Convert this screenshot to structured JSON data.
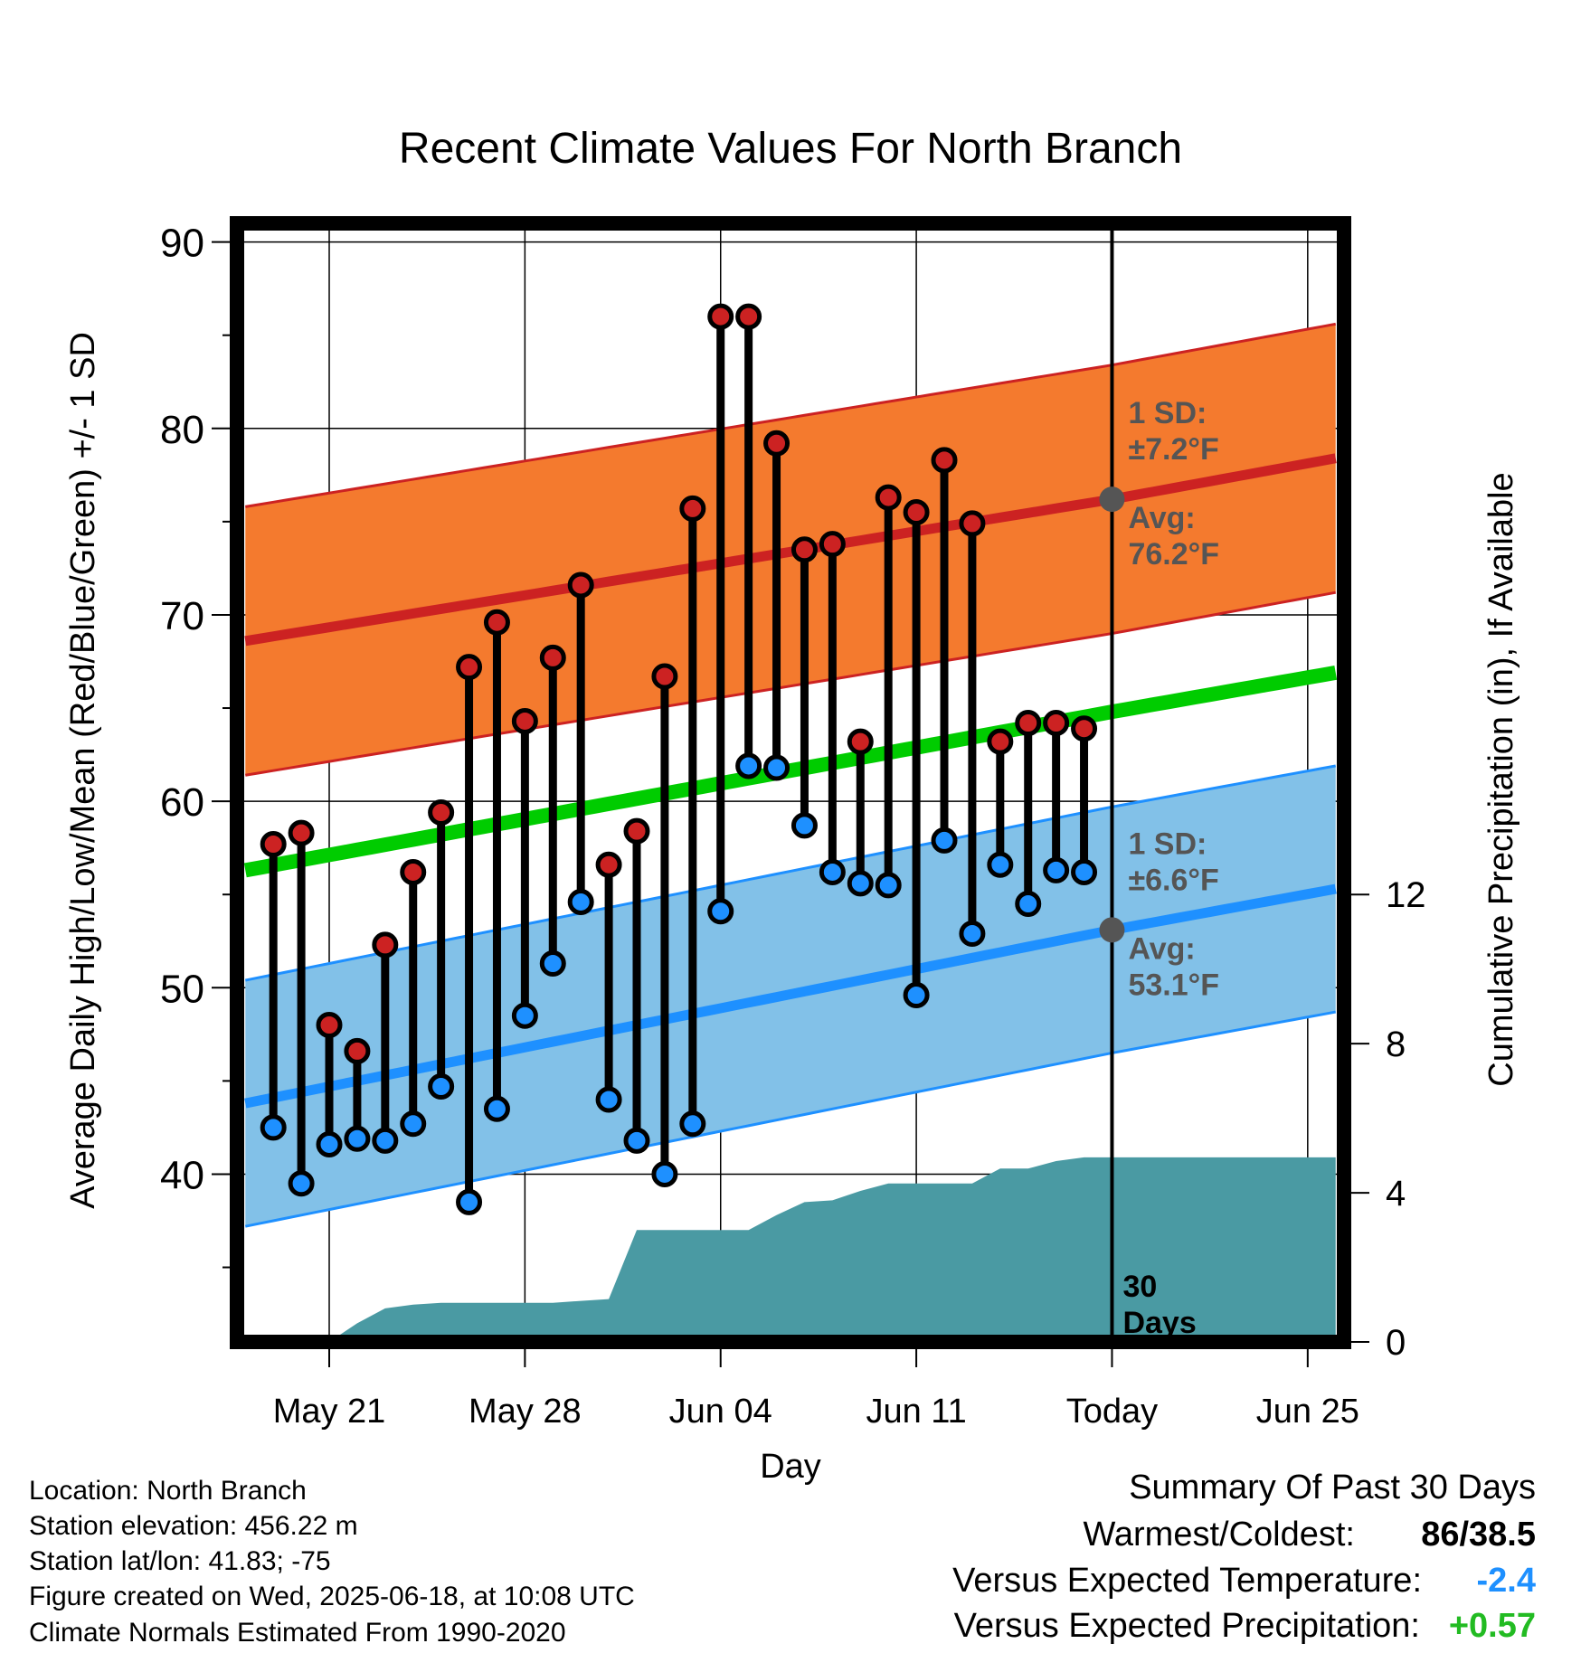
{
  "chart_data": {
    "type": "line",
    "title": "Recent Climate Values For North Branch",
    "xlabel": "Day",
    "ylabel": "Average Daily High/Low/Mean (Red/Blue/Green) +/- 1 SD",
    "y2label": "Cumulative Precipitation (in), If Available",
    "ylim": [
      31,
      91
    ],
    "y2lim": [
      0,
      30
    ],
    "yticks": [
      40,
      50,
      60,
      70,
      80,
      90
    ],
    "y2ticks": [
      0,
      4,
      8,
      12
    ],
    "xticks": [
      {
        "day": 3,
        "label": "May 21"
      },
      {
        "day": 10,
        "label": "May 28"
      },
      {
        "day": 17,
        "label": "Jun 04"
      },
      {
        "day": 24,
        "label": "Jun 11"
      },
      {
        "day": 31,
        "label": "Today"
      },
      {
        "day": 38,
        "label": "Jun 25"
      }
    ],
    "xlim": [
      -0.3,
      39.3
    ],
    "grid": true,
    "colors": {
      "high": "#cc2222",
      "high_band": "#f47a2e",
      "low": "#1e90ff",
      "low_band": "#82c1e8",
      "mean": "#00cc00",
      "precip": "#4a9aa3",
      "dot_high": "#cc2222",
      "dot_low": "#1e90ff"
    },
    "normals": {
      "x": [
        0,
        31,
        39
      ],
      "high_avg": [
        68.6,
        76.2,
        78.4
      ],
      "high_sd": 7.2,
      "low_avg": [
        43.8,
        53.1,
        55.3
      ],
      "low_sd": 6.6,
      "mean_avg": [
        56.3,
        64.8,
        66.9
      ]
    },
    "series": [
      {
        "name": "High",
        "x": [
          1,
          2,
          3,
          4,
          5,
          6,
          7,
          8,
          9,
          10,
          11,
          12,
          13,
          14,
          15,
          16,
          17,
          18,
          19,
          20,
          21,
          22,
          23,
          24,
          25,
          26,
          27,
          28,
          29,
          30
        ],
        "values": [
          57.7,
          58.3,
          48.0,
          46.6,
          52.3,
          56.2,
          59.4,
          67.2,
          69.6,
          64.3,
          67.7,
          71.6,
          56.6,
          58.4,
          66.7,
          75.7,
          86.0,
          86.0,
          79.2,
          73.5,
          73.8,
          63.2,
          76.3,
          75.5,
          78.3,
          74.9,
          63.2,
          64.2,
          64.2,
          63.9
        ]
      },
      {
        "name": "Low",
        "x": [
          1,
          2,
          3,
          4,
          5,
          6,
          7,
          8,
          9,
          10,
          11,
          12,
          13,
          14,
          15,
          16,
          17,
          18,
          19,
          20,
          21,
          22,
          23,
          24,
          25,
          26,
          27,
          28,
          29,
          30
        ],
        "values": [
          42.5,
          39.5,
          41.6,
          41.9,
          41.8,
          42.7,
          44.7,
          38.5,
          43.5,
          48.5,
          51.3,
          54.6,
          44.0,
          41.8,
          40.0,
          42.7,
          54.1,
          61.9,
          61.8,
          58.7,
          56.2,
          55.6,
          55.5,
          49.6,
          57.9,
          52.9,
          56.6,
          54.5,
          56.3,
          56.2
        ]
      },
      {
        "name": "Precip",
        "x": [
          3,
          4,
          5,
          6,
          7,
          8,
          9,
          10,
          11,
          12,
          13,
          14,
          15,
          16,
          17,
          18,
          19,
          20,
          21,
          22,
          23,
          24,
          25,
          26,
          27,
          28,
          29,
          30,
          31,
          39
        ],
        "values": [
          0,
          0.5,
          0.9,
          1.0,
          1.05,
          1.05,
          1.05,
          1.05,
          1.05,
          1.1,
          1.15,
          3.0,
          3.0,
          3.0,
          3.0,
          3.0,
          3.4,
          3.75,
          3.8,
          4.05,
          4.25,
          4.25,
          4.25,
          4.25,
          4.65,
          4.65,
          4.85,
          4.95,
          4.95,
          4.95
        ]
      }
    ],
    "today_day": 31,
    "annotations": {
      "high_sd_label": "1 SD:",
      "high_sd_value": "±7.2°F",
      "high_avg_label": "Avg:",
      "high_avg_value": "76.2°F",
      "low_sd_label": "1 SD:",
      "low_sd_value": "±6.6°F",
      "low_avg_label": "Avg:",
      "low_avg_value": "53.1°F",
      "days_num": "30",
      "days_word": "Days"
    }
  },
  "info": {
    "location": "Location: North Branch",
    "elevation": "Station elevation: 456.22 m",
    "latlon": "Station lat/lon: 41.83; -75",
    "created": "Figure created on Wed, 2025-06-18, at 10:08 UTC",
    "normals": "Climate Normals Estimated From 1990-2020"
  },
  "summary": {
    "title": "Summary Of Past 30 Days",
    "warmest_label": "Warmest/Coldest:",
    "warmest_hi": "86",
    "warmest_sep": "/",
    "warmest_lo": "38.5",
    "temp_label": "Versus Expected Temperature:",
    "temp_value": "-2.4",
    "temp_color": "#1e90ff",
    "precip_label": "Versus Expected Precipitation:",
    "precip_value": "+0.57",
    "precip_color": "#22bb22"
  }
}
